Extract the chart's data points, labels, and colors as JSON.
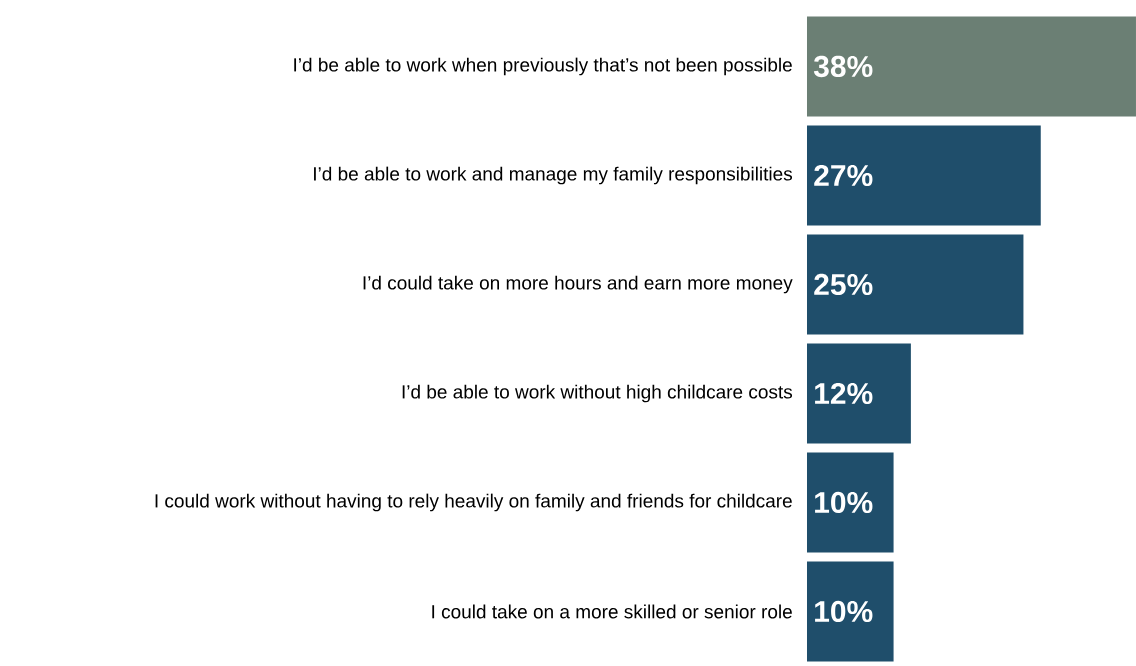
{
  "chart_data": {
    "type": "bar",
    "orientation": "horizontal",
    "categories": [
      "I’d be able to work when previously that’s not been possible",
      "I’d be able to work and manage my family responsibilities",
      "I’d could take on more hours and earn more money",
      "I’d be able to work without high childcare costs",
      "I could work without having to rely heavily on family and friends for childcare",
      "I could take on a more skilled or senior role"
    ],
    "values": [
      38,
      27,
      25,
      12,
      10,
      10
    ],
    "value_labels": [
      "38%",
      "27%",
      "25%",
      "12%",
      "10%",
      "10%"
    ],
    "colors": [
      "#6b7f74",
      "#1f4e6b",
      "#1f4e6b",
      "#1f4e6b",
      "#1f4e6b",
      "#1f4e6b"
    ]
  }
}
